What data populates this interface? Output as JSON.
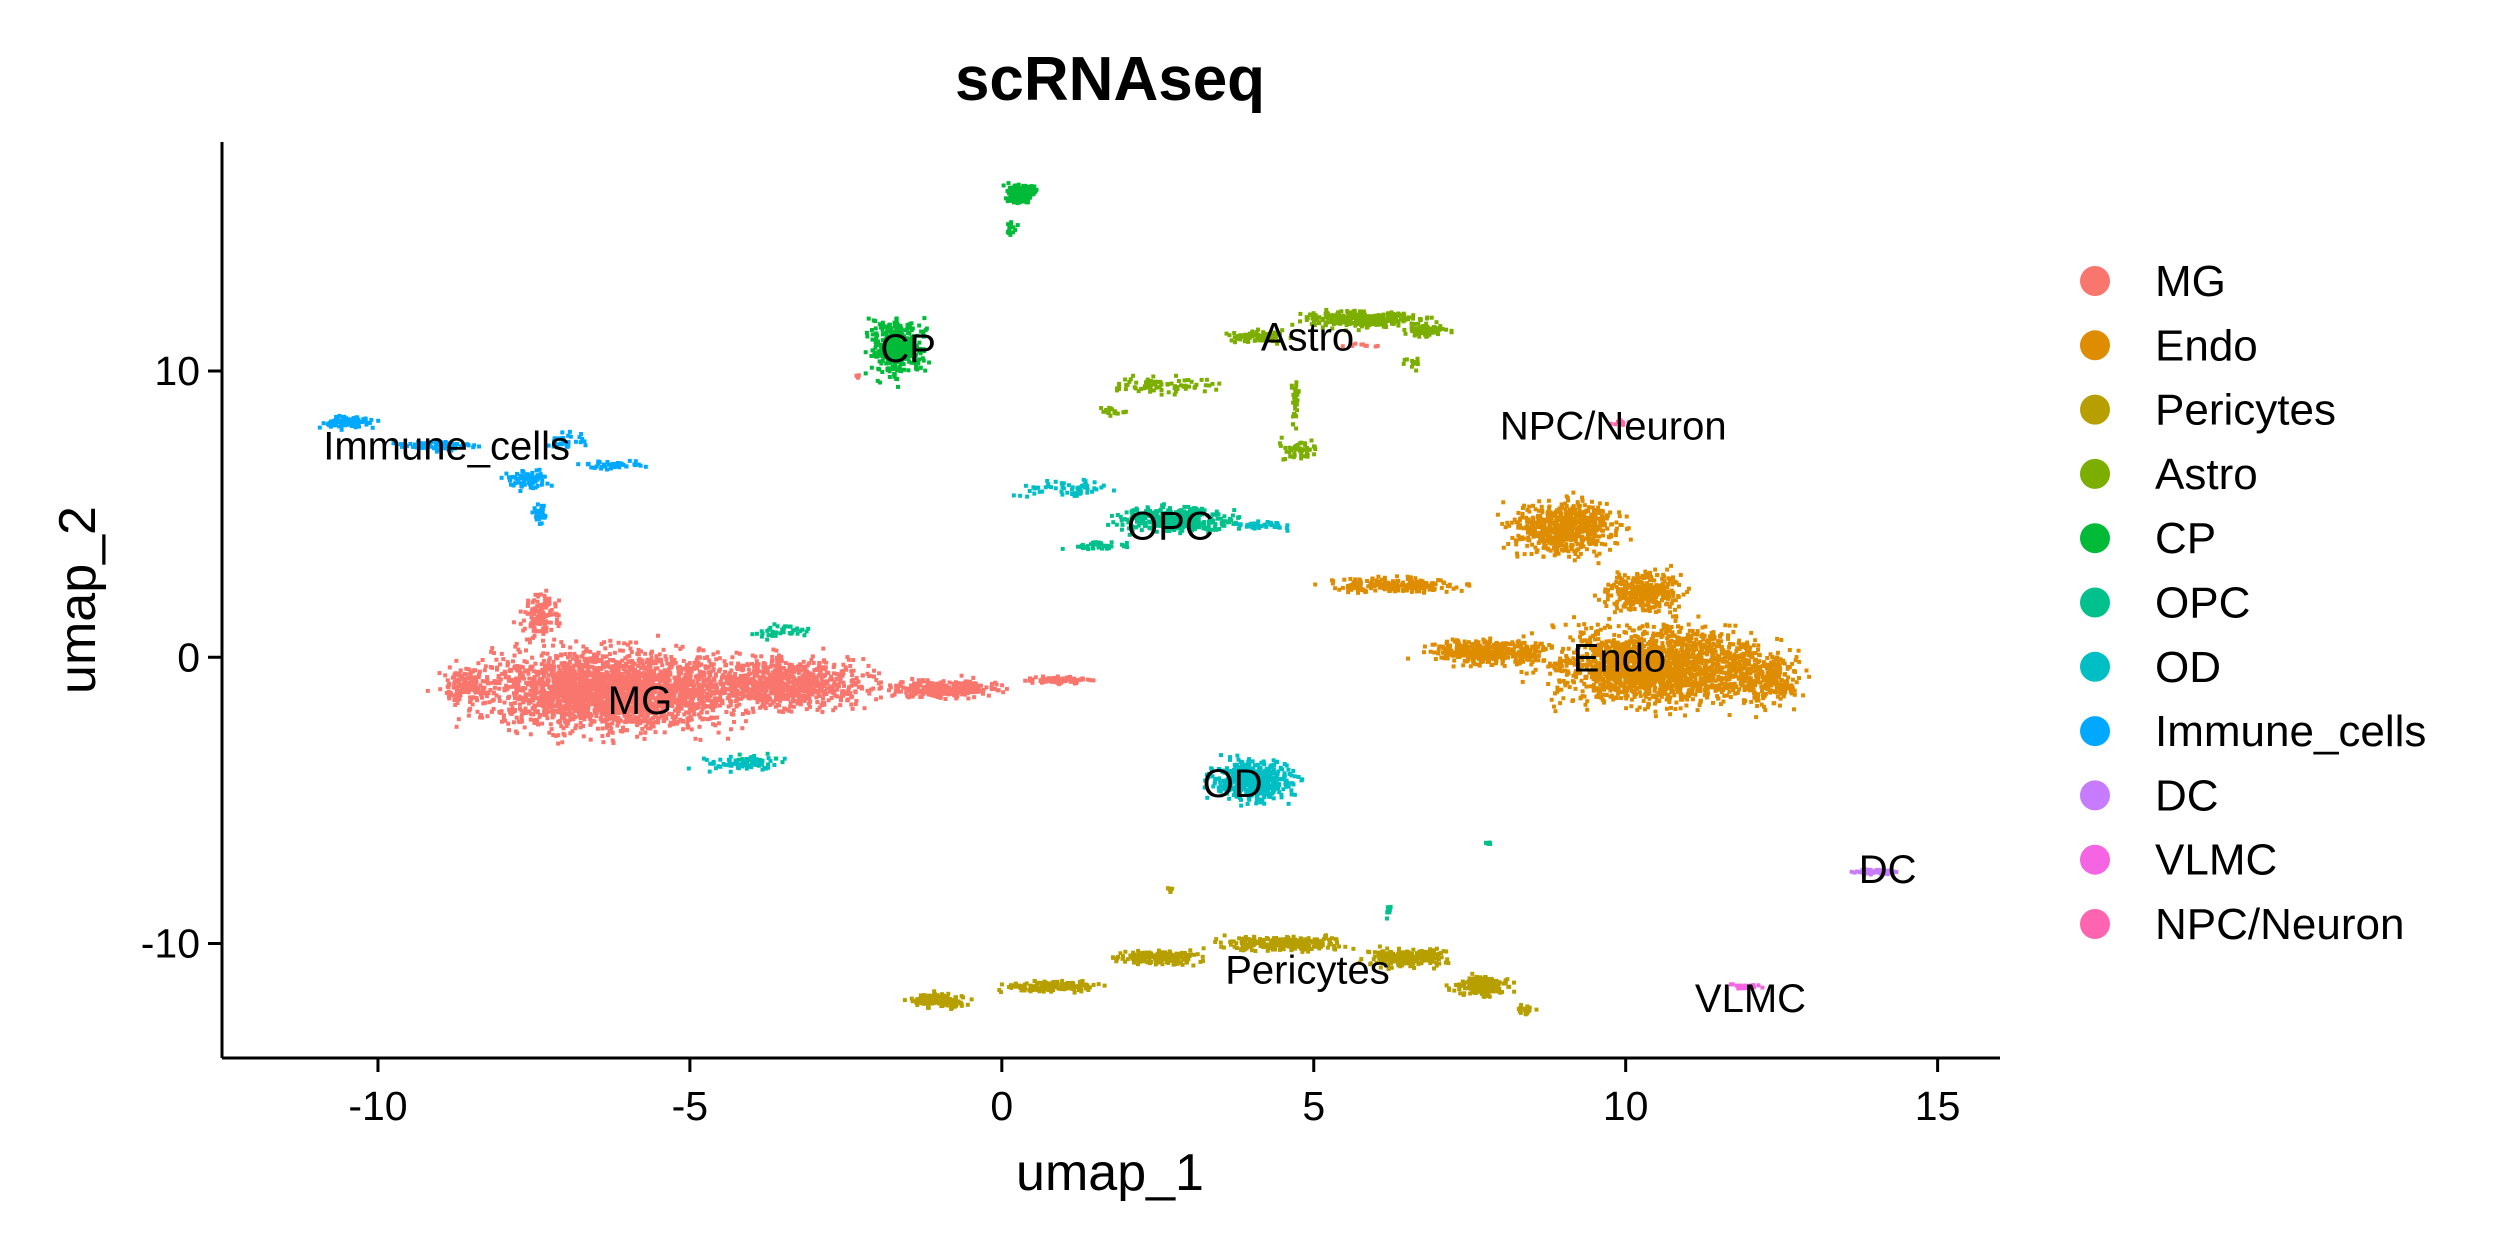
{
  "chart_data": {
    "type": "scatter",
    "title": "scRNAseq",
    "xlabel": "umap_1",
    "ylabel": "umap_2",
    "xlim": [
      -12.5,
      16
    ],
    "ylim": [
      -14,
      18
    ],
    "xticks": [
      -10,
      -5,
      0,
      5,
      10,
      15
    ],
    "yticks": [
      -10,
      0,
      10
    ],
    "grid": false,
    "legend_position": "right",
    "series": [
      {
        "name": "MG",
        "color": "#F8766D",
        "label_at": [
          -5.8,
          -1.5
        ],
        "regions": [
          {
            "cx": -6.2,
            "cy": -1.2,
            "rx": 2.9,
            "ry": 1.9,
            "n": 2600
          },
          {
            "cx": -3.5,
            "cy": -0.9,
            "rx": 1.9,
            "ry": 1.2,
            "n": 900
          },
          {
            "cx": -1.0,
            "cy": -1.1,
            "rx": 1.3,
            "ry": 0.45,
            "n": 300
          },
          {
            "cx": 0.9,
            "cy": -0.8,
            "rx": 0.8,
            "ry": 0.2,
            "n": 80
          },
          {
            "cx": -7.4,
            "cy": 1.5,
            "rx": 0.4,
            "ry": 1.2,
            "n": 140
          },
          {
            "cx": -8.6,
            "cy": -1.0,
            "rx": 0.6,
            "ry": 0.9,
            "n": 150
          },
          {
            "cx": -2.3,
            "cy": 9.8,
            "rx": 0.08,
            "ry": 0.2,
            "n": 6
          },
          {
            "cx": 5.8,
            "cy": 10.9,
            "rx": 0.4,
            "ry": 0.1,
            "n": 10
          }
        ]
      },
      {
        "name": "Endo",
        "color": "#DE8C00",
        "label_at": [
          9.9,
          0
        ],
        "regions": [
          {
            "cx": 10.5,
            "cy": -0.3,
            "rx": 2.3,
            "ry": 1.9,
            "n": 1900
          },
          {
            "cx": 9.0,
            "cy": 4.5,
            "rx": 1.2,
            "ry": 1.3,
            "n": 650
          },
          {
            "cx": 10.3,
            "cy": 2.3,
            "rx": 0.9,
            "ry": 1.0,
            "n": 350
          },
          {
            "cx": 7.8,
            "cy": 0.2,
            "rx": 1.3,
            "ry": 0.6,
            "n": 380
          },
          {
            "cx": 6.3,
            "cy": 2.5,
            "rx": 1.3,
            "ry": 0.35,
            "n": 240
          },
          {
            "cx": 12.2,
            "cy": -0.8,
            "rx": 0.9,
            "ry": 1.2,
            "n": 300
          }
        ]
      },
      {
        "name": "Pericytes",
        "color": "#B79F00",
        "label_at": [
          4.9,
          -10.9
        ],
        "regions": [
          {
            "cx": -1.0,
            "cy": -12.0,
            "rx": 0.6,
            "ry": 0.35,
            "n": 140
          },
          {
            "cx": 0.8,
            "cy": -11.5,
            "rx": 1.1,
            "ry": 0.3,
            "n": 150
          },
          {
            "cx": 2.5,
            "cy": -10.5,
            "rx": 1.0,
            "ry": 0.35,
            "n": 180
          },
          {
            "cx": 4.5,
            "cy": -10.0,
            "rx": 1.3,
            "ry": 0.35,
            "n": 280
          },
          {
            "cx": 6.5,
            "cy": -10.5,
            "rx": 0.9,
            "ry": 0.45,
            "n": 240
          },
          {
            "cx": 7.7,
            "cy": -11.5,
            "rx": 0.6,
            "ry": 0.5,
            "n": 160
          },
          {
            "cx": 8.4,
            "cy": -12.3,
            "rx": 0.2,
            "ry": 0.2,
            "n": 20
          },
          {
            "cx": 2.7,
            "cy": -8.1,
            "rx": 0.08,
            "ry": 0.12,
            "n": 6
          }
        ]
      },
      {
        "name": "Astro",
        "color": "#7CAE00",
        "label_at": [
          4.9,
          11.2
        ],
        "regions": [
          {
            "cx": 5.8,
            "cy": 11.8,
            "rx": 1.3,
            "ry": 0.4,
            "n": 320
          },
          {
            "cx": 6.8,
            "cy": 11.4,
            "rx": 0.5,
            "ry": 0.3,
            "n": 80
          },
          {
            "cx": 4.1,
            "cy": 11.2,
            "rx": 0.6,
            "ry": 0.3,
            "n": 100
          },
          {
            "cx": 2.6,
            "cy": 9.5,
            "rx": 1.2,
            "ry": 0.4,
            "n": 80
          },
          {
            "cx": 1.8,
            "cy": 8.6,
            "rx": 0.4,
            "ry": 0.2,
            "n": 20
          },
          {
            "cx": 4.7,
            "cy": 8.9,
            "rx": 0.08,
            "ry": 1.3,
            "n": 40
          },
          {
            "cx": 4.8,
            "cy": 7.3,
            "rx": 0.45,
            "ry": 0.7,
            "n": 50
          },
          {
            "cx": 6.6,
            "cy": 10.3,
            "rx": 0.25,
            "ry": 0.3,
            "n": 12
          }
        ]
      },
      {
        "name": "CP",
        "color": "#00BA38",
        "label_at": [
          -1.5,
          10.8
        ],
        "regions": [
          {
            "cx": -1.7,
            "cy": 10.8,
            "rx": 0.65,
            "ry": 1.3,
            "n": 420
          },
          {
            "cx": 0.3,
            "cy": 16.2,
            "rx": 0.35,
            "ry": 0.45,
            "n": 140
          },
          {
            "cx": 0.15,
            "cy": 15.0,
            "rx": 0.12,
            "ry": 0.4,
            "n": 14
          }
        ]
      },
      {
        "name": "OPC",
        "color": "#00C08B",
        "label_at": [
          2.7,
          4.6
        ],
        "regions": [
          {
            "cx": 2.8,
            "cy": 4.8,
            "rx": 1.3,
            "ry": 0.6,
            "n": 380
          },
          {
            "cx": 1.6,
            "cy": 3.9,
            "rx": 0.8,
            "ry": 0.2,
            "n": 40
          },
          {
            "cx": -3.5,
            "cy": 0.9,
            "rx": 0.7,
            "ry": 0.4,
            "n": 40
          },
          {
            "cx": -3.9,
            "cy": -3.6,
            "rx": 0.5,
            "ry": 0.3,
            "n": 30
          },
          {
            "cx": 6.2,
            "cy": -8.8,
            "rx": 0.05,
            "ry": 0.35,
            "n": 10
          },
          {
            "cx": 7.8,
            "cy": -6.5,
            "rx": 0.1,
            "ry": 0.05,
            "n": 6
          }
        ]
      },
      {
        "name": "OD",
        "color": "#00BFC4",
        "label_at": [
          3.7,
          -4.4
        ],
        "regions": [
          {
            "cx": 4.0,
            "cy": -4.3,
            "rx": 0.9,
            "ry": 1.0,
            "n": 520
          },
          {
            "cx": 1.0,
            "cy": 5.9,
            "rx": 1.2,
            "ry": 0.4,
            "n": 60
          },
          {
            "cx": 4.2,
            "cy": 4.6,
            "rx": 0.8,
            "ry": 0.2,
            "n": 40
          },
          {
            "cx": -4.2,
            "cy": -3.7,
            "rx": 0.9,
            "ry": 0.35,
            "n": 70
          }
        ]
      },
      {
        "name": "Immune_cells",
        "color": "#00A9FF",
        "label_at": [
          -8.9,
          7.4
        ],
        "regions": [
          {
            "cx": -10.5,
            "cy": 8.2,
            "rx": 0.6,
            "ry": 0.3,
            "n": 80
          },
          {
            "cx": -9.1,
            "cy": 7.4,
            "rx": 0.9,
            "ry": 0.25,
            "n": 90
          },
          {
            "cx": -7.6,
            "cy": 6.2,
            "rx": 0.45,
            "ry": 0.5,
            "n": 70
          },
          {
            "cx": -7.4,
            "cy": 5.0,
            "rx": 0.15,
            "ry": 0.45,
            "n": 40
          },
          {
            "cx": -6.3,
            "cy": 6.7,
            "rx": 0.8,
            "ry": 0.2,
            "n": 40
          },
          {
            "cx": -7.0,
            "cy": 7.6,
            "rx": 0.4,
            "ry": 0.4,
            "n": 30
          }
        ]
      },
      {
        "name": "DC",
        "color": "#C77CFF",
        "label_at": [
          14.2,
          -7.4
        ],
        "regions": [
          {
            "cx": 14.0,
            "cy": -7.5,
            "rx": 0.5,
            "ry": 0.15,
            "n": 60
          }
        ]
      },
      {
        "name": "VLMC",
        "color": "#F564E3",
        "label_at": [
          12.0,
          -11.9
        ],
        "regions": [
          {
            "cx": 11.9,
            "cy": -11.5,
            "rx": 0.35,
            "ry": 0.12,
            "n": 25
          }
        ]
      },
      {
        "name": "NPC/Neuron",
        "color": "#FF64B0",
        "label_at": [
          9.8,
          8.1
        ],
        "regions": [
          {
            "cx": 9.9,
            "cy": 8.2,
            "rx": 0.25,
            "ry": 0.12,
            "n": 12
          }
        ]
      }
    ]
  }
}
